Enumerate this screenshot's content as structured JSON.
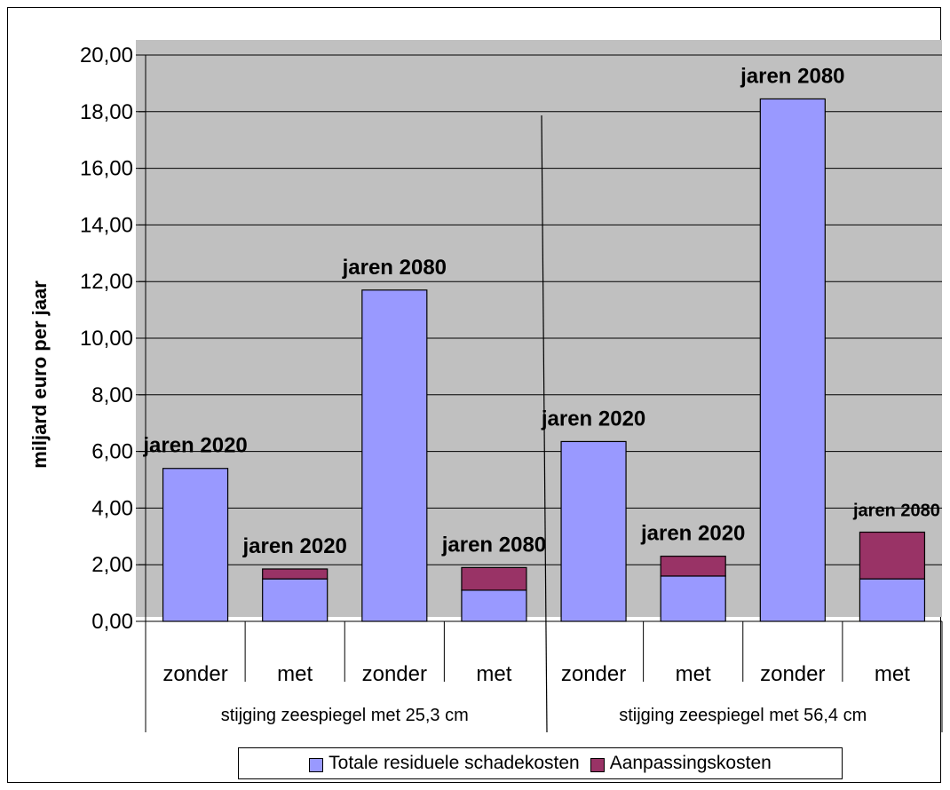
{
  "chart_data": {
    "type": "bar",
    "stacked": true,
    "ylabel": "miljard euro per jaar",
    "ylim": [
      0,
      20
    ],
    "yticks": [
      "0,00",
      "2,00",
      "4,00",
      "6,00",
      "8,00",
      "10,00",
      "12,00",
      "14,00",
      "16,00",
      "18,00",
      "20,00"
    ],
    "categories": [
      "zonder",
      "met",
      "zonder",
      "met",
      "zonder",
      "met",
      "zonder",
      "met"
    ],
    "groups": [
      {
        "label": "stijging zeespiegel met 25,3 cm",
        "span": [
          0,
          3
        ]
      },
      {
        "label": "stijging zeespiegel met 56,4 cm",
        "span": [
          4,
          7
        ]
      }
    ],
    "bar_labels": [
      "jaren 2020",
      "jaren 2020",
      "jaren 2080",
      "jaren 2080",
      "jaren 2020",
      "jaren 2020",
      "jaren 2080",
      "jaren 2080"
    ],
    "series": [
      {
        "name": "Totale residuele schadekosten",
        "color": "#9999ff",
        "values": [
          5.4,
          1.5,
          11.7,
          1.1,
          6.35,
          1.6,
          18.45,
          1.5
        ]
      },
      {
        "name": "Aanpassingskosten",
        "color": "#993366",
        "values": [
          0,
          0.35,
          0,
          0.8,
          0,
          0.7,
          0,
          1.65
        ]
      }
    ],
    "plot_background": "#c0c0c0",
    "grid": true,
    "legend_position": "bottom"
  }
}
